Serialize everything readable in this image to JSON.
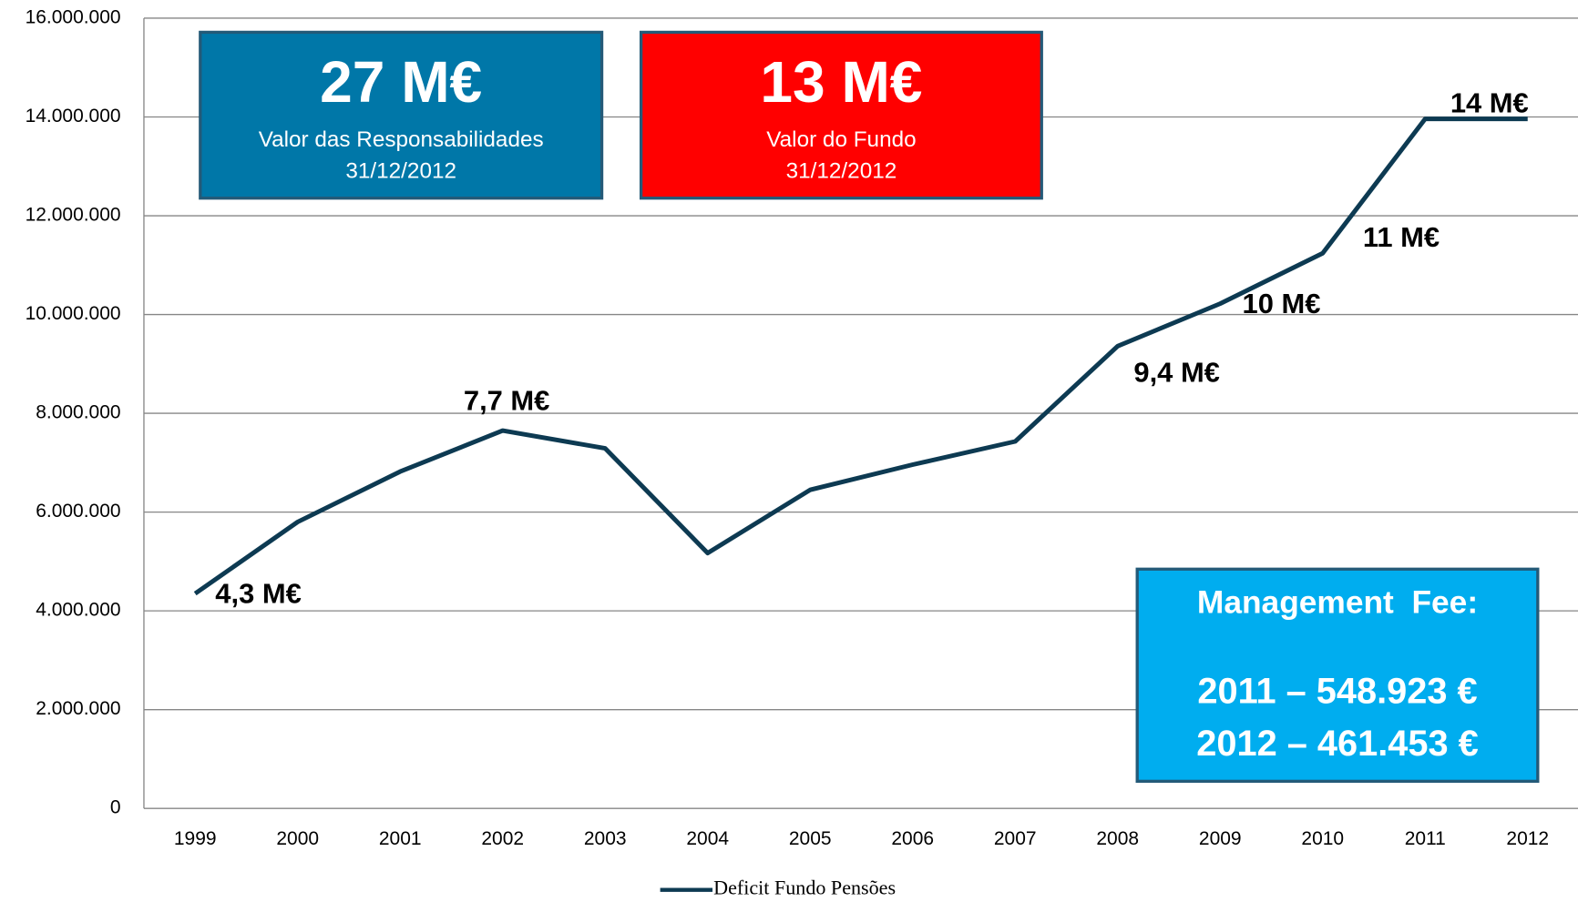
{
  "chart_data": {
    "type": "line",
    "categories": [
      "1999",
      "2000",
      "2001",
      "2002",
      "2003",
      "2004",
      "2005",
      "2006",
      "2007",
      "2008",
      "2009",
      "2010",
      "2011",
      "2012"
    ],
    "series": [
      {
        "name": "Deficit Fundo Pensões",
        "color": "#0d3a52",
        "values": [
          4350000,
          5800000,
          6820000,
          7650000,
          7290000,
          5170000,
          6450000,
          6960000,
          7430000,
          9360000,
          10220000,
          11240000,
          13960000,
          13960000
        ],
        "value_labels": [
          "4,3 M€",
          null,
          null,
          "7,7 M€",
          null,
          null,
          null,
          null,
          null,
          "9,4 M€",
          "10 M€",
          "11 M€",
          null,
          "14 M€"
        ]
      }
    ],
    "ylim": [
      0,
      16000000
    ],
    "yticks": [
      0,
      {
        "value": 2000000,
        "label": "2.000.000"
      },
      {
        "value": 4000000,
        "label": "4.000.000"
      },
      {
        "value": 6000000,
        "label": "6.000.000"
      },
      {
        "value": 8000000,
        "label": "8.000.000"
      },
      {
        "value": 10000000,
        "label": "10.000.000"
      },
      {
        "value": 12000000,
        "label": "12.000.000"
      },
      {
        "value": 14000000,
        "label": "14.000.000"
      },
      {
        "value": 16000000,
        "label": "16.000.000"
      }
    ],
    "grid": true,
    "legend": "bottom",
    "annotations": [
      {
        "big": "27 M€",
        "lines": [
          "Valor das Responsabilidades",
          "31/12/2012"
        ],
        "color": "#0077a8"
      },
      {
        "big": "13 M€",
        "lines": [
          "Valor do Fundo",
          "31/12/2012"
        ],
        "color": "#ff0000"
      },
      {
        "lines": [
          "Management  Fee:",
          "2011 – 548.923 €",
          "2012 – 461.453 €"
        ],
        "color": "#00adef"
      }
    ]
  }
}
